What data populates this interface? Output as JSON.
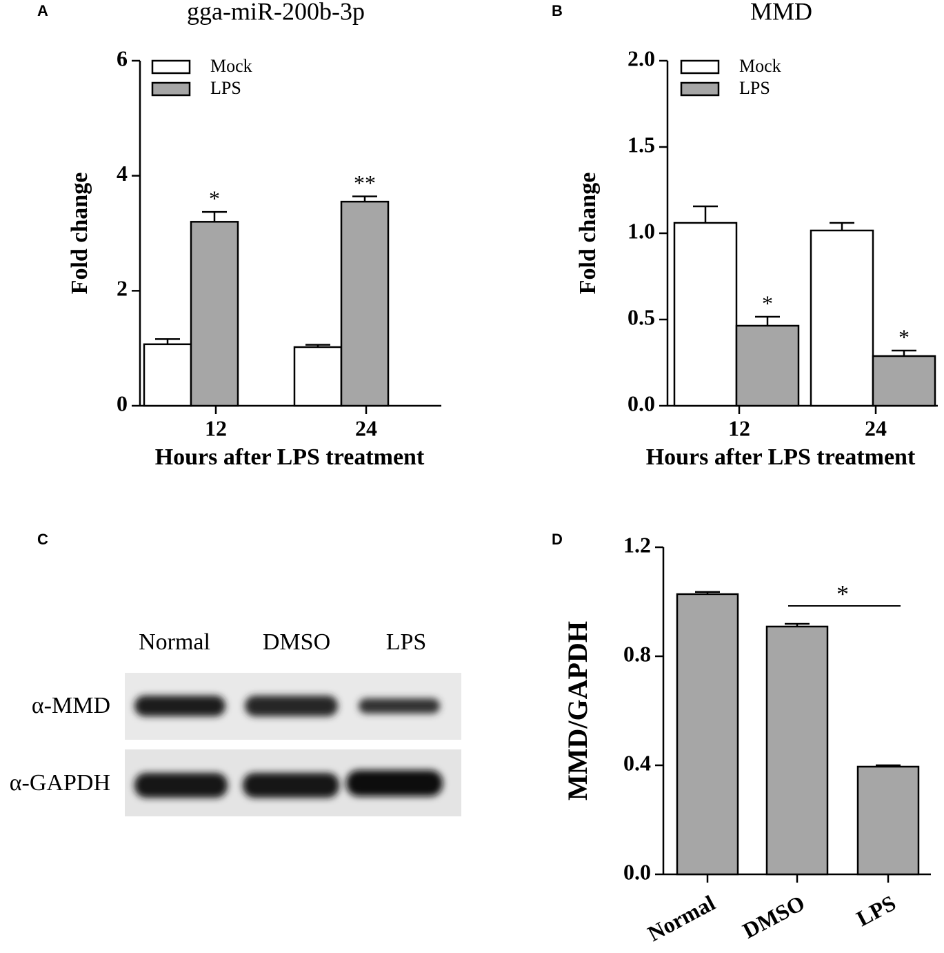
{
  "chart_data": [
    {
      "type": "bar",
      "panel": "A",
      "title": "gga-miR-200b-3p",
      "ylabel": "Fold change",
      "xlabel": "Hours after LPS treatment",
      "categories": [
        "12",
        "24"
      ],
      "series": [
        {
          "name": "Mock",
          "color": "#ffffff",
          "values": [
            1.07,
            1.02
          ],
          "errors": [
            0.09,
            0.04
          ]
        },
        {
          "name": "LPS",
          "color": "#a6a6a6",
          "values": [
            3.2,
            3.55
          ],
          "errors": [
            0.17,
            0.09
          ],
          "annotations": [
            "*",
            "**"
          ]
        }
      ],
      "ylim": [
        0,
        6
      ],
      "yticks": [
        0,
        2,
        4,
        6
      ],
      "legend": "upper left"
    },
    {
      "type": "bar",
      "panel": "B",
      "title": "MMD",
      "ylabel": "Fold change",
      "xlabel": "Hours after LPS treatment",
      "categories": [
        "12",
        "24"
      ],
      "series": [
        {
          "name": "Mock",
          "color": "#ffffff",
          "values": [
            1.06,
            1.016
          ],
          "errors": [
            0.096,
            0.044
          ]
        },
        {
          "name": "LPS",
          "color": "#a6a6a6",
          "values": [
            0.464,
            0.288
          ],
          "errors": [
            0.052,
            0.032
          ],
          "annotations": [
            "*",
            "*"
          ]
        }
      ],
      "ylim": [
        0,
        2
      ],
      "yticks": [
        {
          "value": 0,
          "label": "0.0"
        },
        0.5,
        {
          "value": 1,
          "label": "1.0"
        },
        1.5,
        {
          "value": 2,
          "label": "2.0"
        }
      ],
      "legend": "upper left"
    },
    {
      "type": "bar",
      "panel": "D",
      "ylabel": "MMD/GAPDH",
      "categories": [
        "Normal",
        "DMSO",
        "LPS"
      ],
      "values": [
        1.028,
        0.909,
        0.395
      ],
      "errors": [
        0.008,
        0.01,
        0.005
      ],
      "color": "#a6a6a6",
      "significance": [
        {
          "pair": [
            "DMSO",
            "LPS"
          ],
          "label": "*"
        }
      ],
      "ylim": [
        0,
        1.2
      ],
      "yticks": [
        {
          "value": 0,
          "label": "0.0"
        },
        0.4,
        0.8,
        1.2
      ]
    }
  ],
  "blot": {
    "panel": "C",
    "lanes": [
      "Normal",
      "DMSO",
      "LPS"
    ],
    "rows": [
      "α-MMD",
      "α-GAPDH"
    ]
  }
}
